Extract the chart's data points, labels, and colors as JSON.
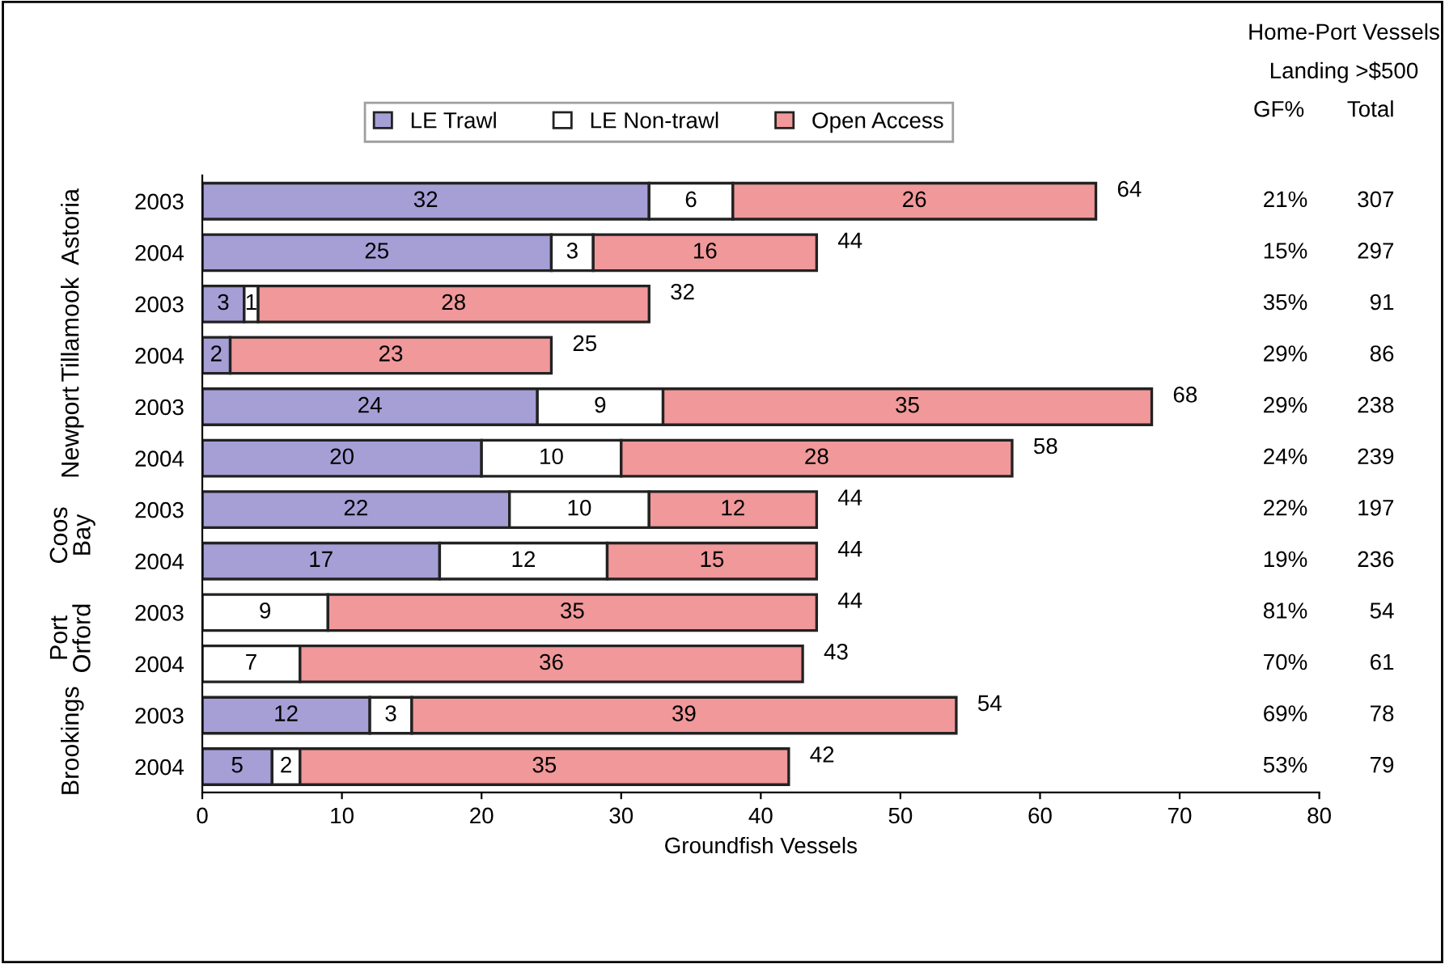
{
  "chart_data": {
    "type": "bar",
    "orientation": "horizontal",
    "stacked": true,
    "categories": [
      "2003",
      "2004",
      "2003",
      "2004",
      "2003",
      "2004",
      "2003",
      "2004",
      "2003",
      "2004",
      "2003",
      "2004"
    ],
    "series": [
      {
        "name": "LE Trawl",
        "color": "#a59fd6",
        "values": [
          32,
          25,
          3,
          2,
          24,
          20,
          22,
          17,
          null,
          null,
          12,
          5
        ],
        "value_labels": [
          "32",
          "25",
          "3",
          "2",
          "24",
          "20",
          "22",
          "17",
          null,
          null,
          "12",
          "5"
        ]
      },
      {
        "name": "LE Non-trawl",
        "color": "#ffffff",
        "values": [
          6,
          3,
          1,
          null,
          9,
          10,
          10,
          12,
          9,
          7,
          3,
          2
        ],
        "value_labels": [
          "6",
          "3",
          "1",
          null,
          "9",
          "10",
          "10",
          "12",
          "9",
          "7",
          "3",
          "2"
        ]
      },
      {
        "name": "Open Access",
        "color": "#f0989a",
        "values": [
          26,
          16,
          28,
          23,
          35,
          28,
          12,
          15,
          35,
          36,
          39,
          35
        ],
        "value_labels": [
          "26",
          "16",
          "28",
          "23",
          "35",
          "28",
          "12",
          "15",
          "35",
          "36",
          "39",
          "35"
        ]
      }
    ],
    "totals": [
      "64",
      "44",
      "32",
      "25",
      "68",
      "58",
      "44",
      "44",
      "44",
      "43",
      "54",
      "42"
    ],
    "xlim": [
      0,
      80
    ],
    "xticks": [
      0,
      10,
      20,
      30,
      40,
      50,
      60,
      70,
      80
    ],
    "xlabel": "Groundfish Vessels",
    "legend": "top",
    "grid": false,
    "annotations": [
      "Astoria",
      "Tillamook",
      "Newport",
      "Coos\nBay",
      "Port\nOrford",
      "Brookings",
      "Home-Port Vessels",
      "Landing >$500",
      "GF%",
      "Total",
      "21%",
      "307",
      "15%",
      "297",
      "35%",
      "91",
      "29%",
      "86",
      "29%",
      "238",
      "24%",
      "239",
      "22%",
      "197",
      "19%",
      "236",
      "81%",
      "54",
      "70%",
      "61",
      "69%",
      "78",
      "53%",
      "79"
    ]
  }
}
